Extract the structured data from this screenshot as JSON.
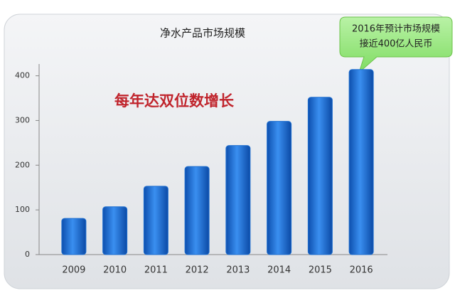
{
  "chart_data": {
    "type": "bar",
    "title": "净水产品市场规模",
    "annotations": [
      "每年达双位数增长",
      "2016年预计市场规模",
      "接近400亿人民币"
    ],
    "categories": [
      "2009",
      "2010",
      "2011",
      "2012",
      "2013",
      "2014",
      "2015",
      "2016"
    ],
    "values": [
      81,
      107,
      153,
      197,
      244,
      298,
      352,
      414
    ],
    "color": "#1f6fd0",
    "ylim": [
      0,
      420
    ],
    "yticks": [
      0,
      100,
      200,
      300,
      400
    ],
    "grid": false
  }
}
